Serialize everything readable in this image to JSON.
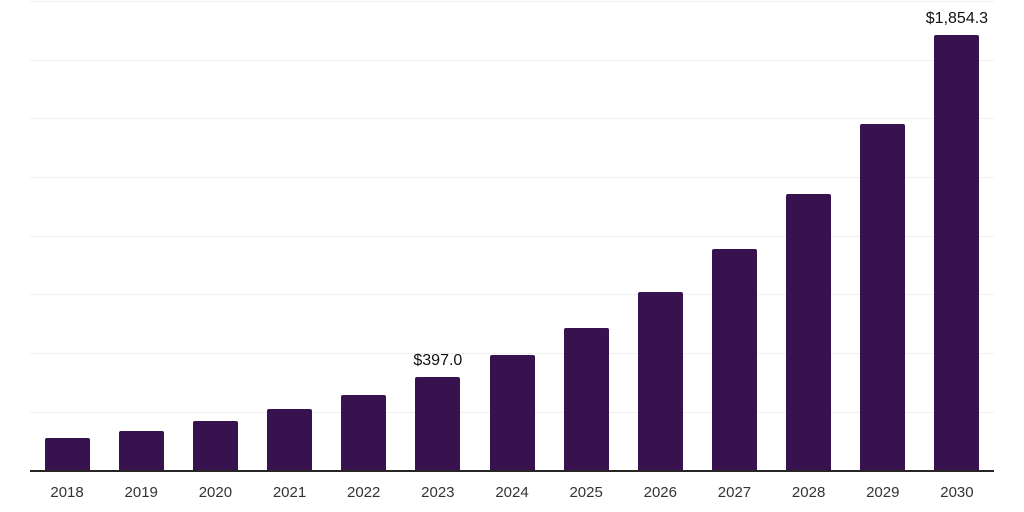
{
  "page": {
    "background_color": "#ffffff"
  },
  "chart_data": {
    "type": "bar",
    "title": "",
    "xlabel": "",
    "ylabel": "",
    "categories": [
      "2018",
      "2019",
      "2020",
      "2021",
      "2022",
      "2023",
      "2024",
      "2025",
      "2026",
      "2027",
      "2028",
      "2029",
      "2030"
    ],
    "values": [
      137.0,
      168.3,
      210.9,
      260.6,
      321.5,
      397.0,
      490.5,
      608.1,
      761.5,
      942.1,
      1176.3,
      1475.7,
      1854.3
    ],
    "value_annotations": [
      null,
      null,
      null,
      null,
      null,
      "$397.0",
      null,
      null,
      null,
      null,
      null,
      null,
      "$1,854.3"
    ],
    "ylim": [
      0,
      2000
    ],
    "gridline_step": 250,
    "grid": "horizontal-only",
    "y_tick_labels_visible": false,
    "legend": "none",
    "colors": {
      "bar": "#37124e",
      "gridline": "#f0f0f0",
      "axis_line": "#262626",
      "tick_label": "#333333",
      "value_label": "#111111",
      "background": "#ffffff"
    }
  }
}
